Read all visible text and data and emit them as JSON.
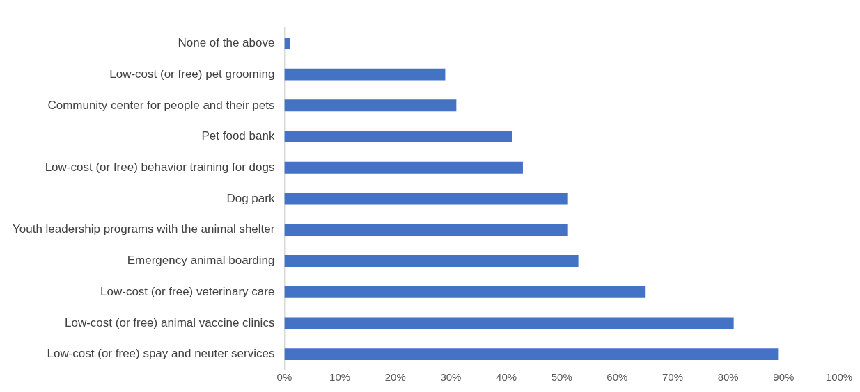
{
  "chart_data": {
    "type": "bar",
    "orientation": "horizontal",
    "categories": [
      "None of the above",
      "Low-cost (or free) pet grooming",
      "Community center for people and their pets",
      "Pet food bank",
      "Low-cost (or free) behavior training for dogs",
      "Dog park",
      "Youth leadership programs with the animal shelter",
      "Emergency animal boarding",
      "Low-cost (or free) veterinary care",
      "Low-cost (or free) animal vaccine clinics",
      "Low-cost (or free) spay and neuter services"
    ],
    "values": [
      1,
      29,
      31,
      41,
      43,
      51,
      51,
      53,
      65,
      81,
      89
    ],
    "color": "#4472c4",
    "xlim": [
      0,
      100
    ],
    "xticks": [
      {
        "value": 0,
        "label": "0%"
      },
      {
        "value": 10,
        "label": "10%"
      },
      {
        "value": 20,
        "label": "20%"
      },
      {
        "value": 30,
        "label": "30%"
      },
      {
        "value": 40,
        "label": "40%"
      },
      {
        "value": 50,
        "label": "50%"
      },
      {
        "value": 60,
        "label": "60%"
      },
      {
        "value": 70,
        "label": "70%"
      },
      {
        "value": 80,
        "label": "80%"
      },
      {
        "value": 90,
        "label": "90%"
      },
      {
        "value": 100,
        "label": "100%"
      }
    ],
    "grid": false,
    "legend": false
  }
}
